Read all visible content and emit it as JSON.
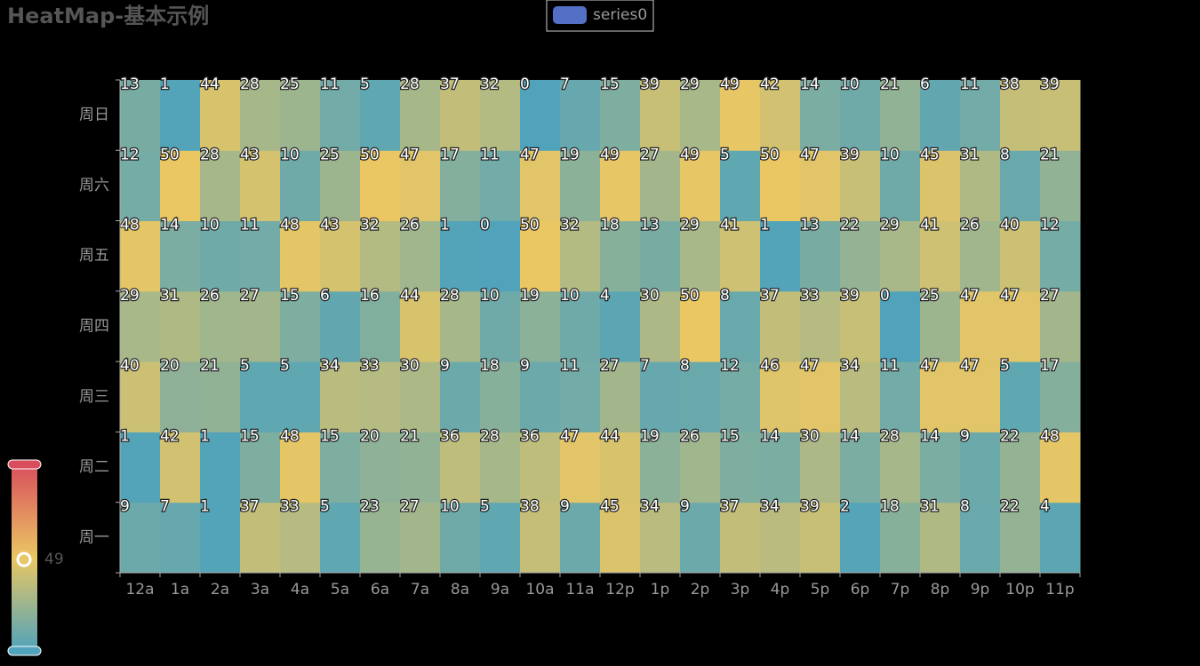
{
  "chart_data": {
    "type": "heatmap",
    "title": "HeatMap-基本示例",
    "x_categories": [
      "12a",
      "1a",
      "2a",
      "3a",
      "4a",
      "5a",
      "6a",
      "7a",
      "8a",
      "9a",
      "10a",
      "11a",
      "12p",
      "1p",
      "2p",
      "3p",
      "4p",
      "5p",
      "6p",
      "7p",
      "8p",
      "9p",
      "10p",
      "11p"
    ],
    "y_categories": [
      "周一",
      "周二",
      "周三",
      "周四",
      "周五",
      "周六",
      "周日"
    ],
    "series": [
      {
        "name": "series0",
        "color": "#5470c6",
        "values": [
          [
            9,
            7,
            1,
            37,
            33,
            5,
            23,
            27,
            10,
            5,
            38,
            9,
            45,
            34,
            9,
            37,
            34,
            39,
            2,
            18,
            31,
            8,
            22,
            4
          ],
          [
            1,
            42,
            1,
            15,
            48,
            15,
            20,
            21,
            36,
            28,
            36,
            47,
            44,
            19,
            26,
            15,
            14,
            30,
            14,
            28,
            14,
            9,
            22,
            48
          ],
          [
            40,
            20,
            21,
            5,
            5,
            34,
            33,
            30,
            9,
            18,
            9,
            11,
            27,
            7,
            8,
            12,
            46,
            47,
            34,
            11,
            47,
            47,
            5,
            17
          ],
          [
            29,
            31,
            26,
            27,
            15,
            6,
            16,
            44,
            28,
            10,
            19,
            10,
            4,
            30,
            50,
            8,
            37,
            33,
            39,
            0,
            25,
            47,
            47,
            27
          ],
          [
            48,
            14,
            10,
            11,
            48,
            43,
            32,
            26,
            1,
            0,
            50,
            32,
            18,
            13,
            29,
            41,
            1,
            13,
            22,
            29,
            41,
            26,
            40,
            12
          ],
          [
            12,
            50,
            28,
            43,
            10,
            25,
            50,
            47,
            17,
            11,
            47,
            19,
            49,
            27,
            49,
            5,
            50,
            47,
            39,
            10,
            45,
            31,
            8,
            21
          ],
          [
            13,
            1,
            44,
            28,
            25,
            11,
            5,
            28,
            37,
            32,
            0,
            7,
            15,
            39,
            29,
            49,
            42,
            14,
            10,
            21,
            6,
            11,
            38,
            39
          ]
        ]
      }
    ],
    "visual_map": {
      "range": [
        0,
        100
      ],
      "indicator": 49,
      "colors": [
        "#50a3ba",
        "#eac763",
        "#d94e5d"
      ]
    }
  }
}
